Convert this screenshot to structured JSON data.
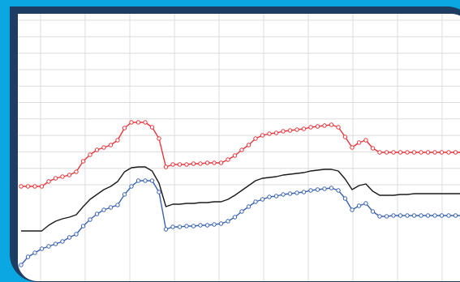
{
  "chart_data": {
    "type": "line",
    "x": [
      0,
      1,
      2,
      3,
      4,
      5,
      6,
      7,
      8,
      9,
      10,
      11,
      12,
      13,
      14,
      15,
      16,
      17,
      18,
      19,
      20,
      21,
      22,
      23,
      24,
      25,
      26,
      27,
      28,
      29,
      30,
      31,
      32,
      33,
      34,
      35,
      36,
      37,
      38,
      39,
      40,
      41,
      42,
      43,
      44,
      45,
      46,
      47,
      48,
      49,
      50,
      51,
      52,
      53,
      54,
      55,
      56,
      57,
      58,
      59,
      60,
      61,
      62,
      63,
      64
    ],
    "xlim": [
      0,
      64
    ],
    "ylim": [
      0,
      300
    ],
    "grid": true,
    "series": [
      {
        "color": "#e8343a",
        "marker": "circle",
        "values": [
          87,
          87,
          87,
          87,
          93,
          97,
          99,
          101,
          105,
          118,
          126,
          132,
          135,
          138,
          144,
          159,
          166,
          166,
          166,
          160,
          146,
          111,
          114,
          114,
          114,
          115,
          115,
          116,
          116,
          116,
          120,
          125,
          132,
          138,
          146,
          150,
          152,
          153,
          155,
          156,
          157,
          158,
          160,
          161,
          162,
          163,
          160,
          148,
          135,
          141,
          144,
          134,
          129,
          129,
          129,
          129,
          129,
          129,
          129,
          129,
          129,
          129,
          129,
          129,
          129
        ]
      },
      {
        "color": "#1a1a1a",
        "marker": "none",
        "values": [
          32,
          32,
          32,
          32,
          39,
          44,
          47,
          49,
          52,
          62,
          71,
          77,
          83,
          87,
          93,
          105,
          110,
          111,
          111,
          106,
          91,
          62,
          65,
          65,
          66,
          66,
          67,
          67,
          68,
          68,
          71,
          76,
          82,
          88,
          94,
          97,
          98,
          99,
          101,
          102,
          103,
          104,
          106,
          107,
          108,
          108,
          106,
          96,
          83,
          88,
          90,
          81,
          76,
          76,
          76,
          77,
          77,
          78,
          78,
          78,
          78,
          78,
          78,
          78,
          78
        ]
      },
      {
        "color": "#3a62ae",
        "marker": "circle",
        "values": [
          -10,
          0,
          5,
          10,
          13,
          16,
          19,
          24,
          28,
          38,
          46,
          53,
          58,
          61,
          64,
          77,
          87,
          94,
          94,
          94,
          80,
          34,
          37,
          37,
          38,
          38,
          39,
          39,
          40,
          41,
          44,
          49,
          56,
          62,
          68,
          71,
          74,
          75,
          77,
          78,
          79,
          80,
          82,
          83,
          84,
          85,
          82,
          72,
          58,
          63,
          66,
          56,
          50,
          50,
          51,
          51,
          51,
          51,
          51,
          51,
          51,
          51,
          51,
          51,
          51
        ]
      }
    ]
  }
}
